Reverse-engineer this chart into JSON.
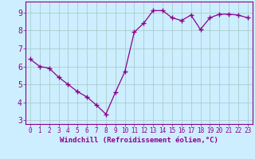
{
  "x": [
    0,
    1,
    2,
    3,
    4,
    5,
    6,
    7,
    8,
    9,
    10,
    11,
    12,
    13,
    14,
    15,
    16,
    17,
    18,
    19,
    20,
    21,
    22,
    23
  ],
  "y": [
    6.4,
    6.0,
    5.9,
    5.4,
    5.0,
    4.6,
    4.3,
    3.85,
    3.35,
    4.55,
    5.7,
    7.9,
    8.4,
    9.1,
    9.1,
    8.7,
    8.55,
    8.85,
    8.05,
    8.7,
    8.9,
    8.9,
    8.85,
    8.7
  ],
  "line_color": "#8B008B",
  "marker": "+",
  "marker_size": 4,
  "bg_color": "#cceeff",
  "grid_color": "#aacccc",
  "xlabel": "Windchill (Refroidissement éolien,°C)",
  "xlabel_color": "#8B008B",
  "tick_color": "#8B008B",
  "spine_color": "#8B008B",
  "xlim": [
    -0.5,
    23.5
  ],
  "ylim": [
    2.8,
    9.6
  ],
  "yticks": [
    3,
    4,
    5,
    6,
    7,
    8,
    9
  ],
  "xticks": [
    0,
    1,
    2,
    3,
    4,
    5,
    6,
    7,
    8,
    9,
    10,
    11,
    12,
    13,
    14,
    15,
    16,
    17,
    18,
    19,
    20,
    21,
    22,
    23
  ],
  "xtick_fontsize": 5.5,
  "ytick_fontsize": 7,
  "xlabel_fontsize": 6.5
}
